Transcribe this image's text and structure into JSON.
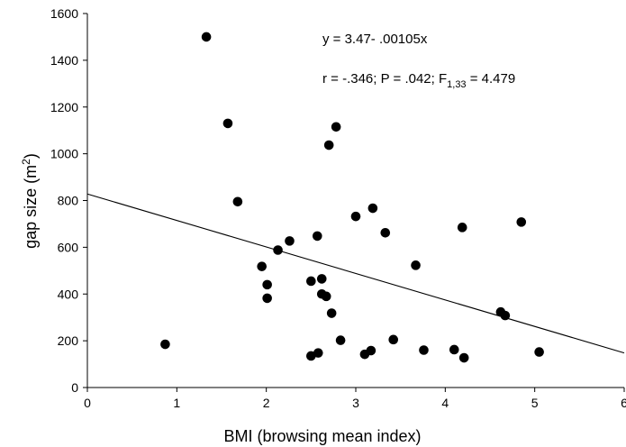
{
  "chart_data": {
    "type": "scatter",
    "title": "",
    "xlabel": "BMI (browsing mean index)",
    "ylabel": {
      "main": "gap size (m",
      "sup": "2",
      "tail": ")"
    },
    "xlim": [
      0,
      6
    ],
    "ylim": [
      0,
      1600
    ],
    "xticks": [
      0,
      1,
      2,
      3,
      4,
      5,
      6
    ],
    "yticks": [
      0,
      200,
      400,
      600,
      800,
      1000,
      1200,
      1400,
      1600
    ],
    "grid": false,
    "legend": "none",
    "marker_color": "#000000",
    "points": [
      {
        "x": 0.87,
        "y": 185
      },
      {
        "x": 1.33,
        "y": 1500
      },
      {
        "x": 1.57,
        "y": 1130
      },
      {
        "x": 1.68,
        "y": 795
      },
      {
        "x": 1.95,
        "y": 518
      },
      {
        "x": 2.01,
        "y": 440
      },
      {
        "x": 2.01,
        "y": 382
      },
      {
        "x": 2.13,
        "y": 588
      },
      {
        "x": 2.26,
        "y": 627
      },
      {
        "x": 2.5,
        "y": 455
      },
      {
        "x": 2.5,
        "y": 135
      },
      {
        "x": 2.57,
        "y": 648
      },
      {
        "x": 2.58,
        "y": 148
      },
      {
        "x": 2.62,
        "y": 465
      },
      {
        "x": 2.62,
        "y": 400
      },
      {
        "x": 2.67,
        "y": 390
      },
      {
        "x": 2.7,
        "y": 1037
      },
      {
        "x": 2.73,
        "y": 318
      },
      {
        "x": 2.78,
        "y": 1115
      },
      {
        "x": 2.83,
        "y": 202
      },
      {
        "x": 3.0,
        "y": 732
      },
      {
        "x": 3.1,
        "y": 142
      },
      {
        "x": 3.17,
        "y": 158
      },
      {
        "x": 3.19,
        "y": 767
      },
      {
        "x": 3.33,
        "y": 662
      },
      {
        "x": 3.42,
        "y": 205
      },
      {
        "x": 3.67,
        "y": 523
      },
      {
        "x": 3.76,
        "y": 160
      },
      {
        "x": 4.1,
        "y": 162
      },
      {
        "x": 4.19,
        "y": 685
      },
      {
        "x": 4.21,
        "y": 127
      },
      {
        "x": 4.62,
        "y": 323
      },
      {
        "x": 4.67,
        "y": 308
      },
      {
        "x": 4.85,
        "y": 708
      },
      {
        "x": 5.05,
        "y": 152
      }
    ],
    "regression": {
      "x": [
        0,
        6
      ],
      "y": [
        828,
        148
      ]
    },
    "annotations": {
      "equation": "y = 3.47- .00105x",
      "stats_main": "r = -.346; P = .042; F",
      "stats_sub": "1,33",
      "stats_tail": " = 4.479"
    }
  }
}
